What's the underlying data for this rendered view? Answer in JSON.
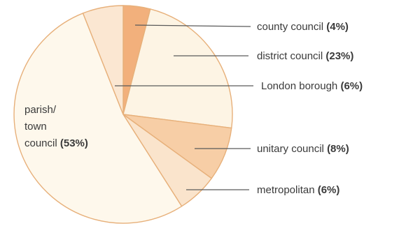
{
  "chart_data": {
    "type": "pie",
    "title": "",
    "start": "12 o'clock, clockwise",
    "slices": [
      {
        "label": "county council",
        "pct_text": "(4%)",
        "value": 4,
        "color": "#f2b07c"
      },
      {
        "label": "district council",
        "pct_text": "(23%)",
        "value": 23,
        "color": "#fdf4e4"
      },
      {
        "label": "unitary council",
        "pct_text": "(8%)",
        "value": 8,
        "color": "#f7cea6"
      },
      {
        "label": "metropolitan",
        "pct_text": "(6%)",
        "value": 6,
        "color": "#fae4cc"
      },
      {
        "label": "parish/ town council",
        "pct_text": "(53%)",
        "value": 53,
        "color": "#fef8ec"
      },
      {
        "label": "London borough",
        "pct_text": "(6%)",
        "value": 6,
        "color": "#fbe7d2"
      }
    ],
    "labels": {
      "county": {
        "name": "county council",
        "pct": "(4%)"
      },
      "district": {
        "name": "district council",
        "pct": "(23%)"
      },
      "london": {
        "name": "London borough",
        "pct": "(6%)"
      },
      "unitary": {
        "name": "unitary council",
        "pct": "(8%)"
      },
      "metro": {
        "name": "metropolitan",
        "pct": "(6%)"
      },
      "parish": {
        "line1": "parish/",
        "line2": "town",
        "line3": "council",
        "pct": "(53%)"
      }
    }
  }
}
